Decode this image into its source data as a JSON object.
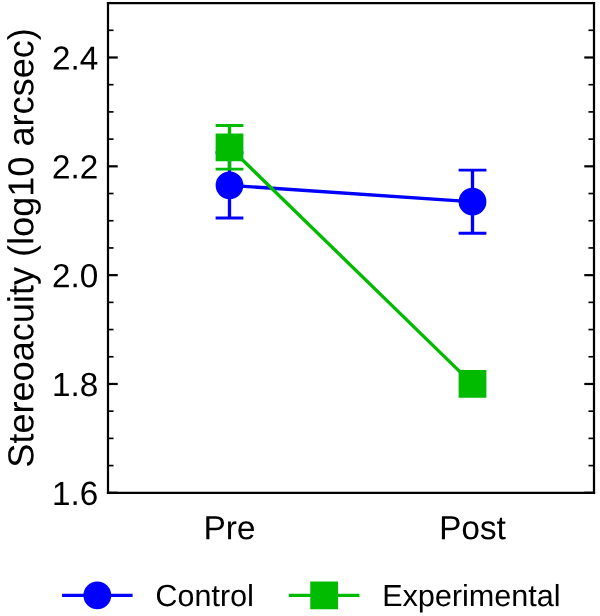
{
  "chart_data": {
    "type": "line",
    "ylabel": "Stereoacuity (log10 arcsec)",
    "categories": [
      "Pre",
      "Post"
    ],
    "series": [
      {
        "name": "Control",
        "color": "#0000ff",
        "values": [
          2.165,
          2.135
        ],
        "errors": [
          0.06,
          0.058
        ],
        "marker": "circle"
      },
      {
        "name": "Experimental",
        "color": "#00bb00",
        "values": [
          2.235,
          1.8
        ],
        "errors": [
          0.04,
          null
        ],
        "marker": "square"
      }
    ],
    "ylim": [
      1.6,
      2.5
    ],
    "yticks": [
      1.6,
      1.8,
      {
        "value": 2,
        "label": "2.0"
      },
      2.2,
      2.4
    ],
    "grid": false,
    "legend": "bottom"
  }
}
